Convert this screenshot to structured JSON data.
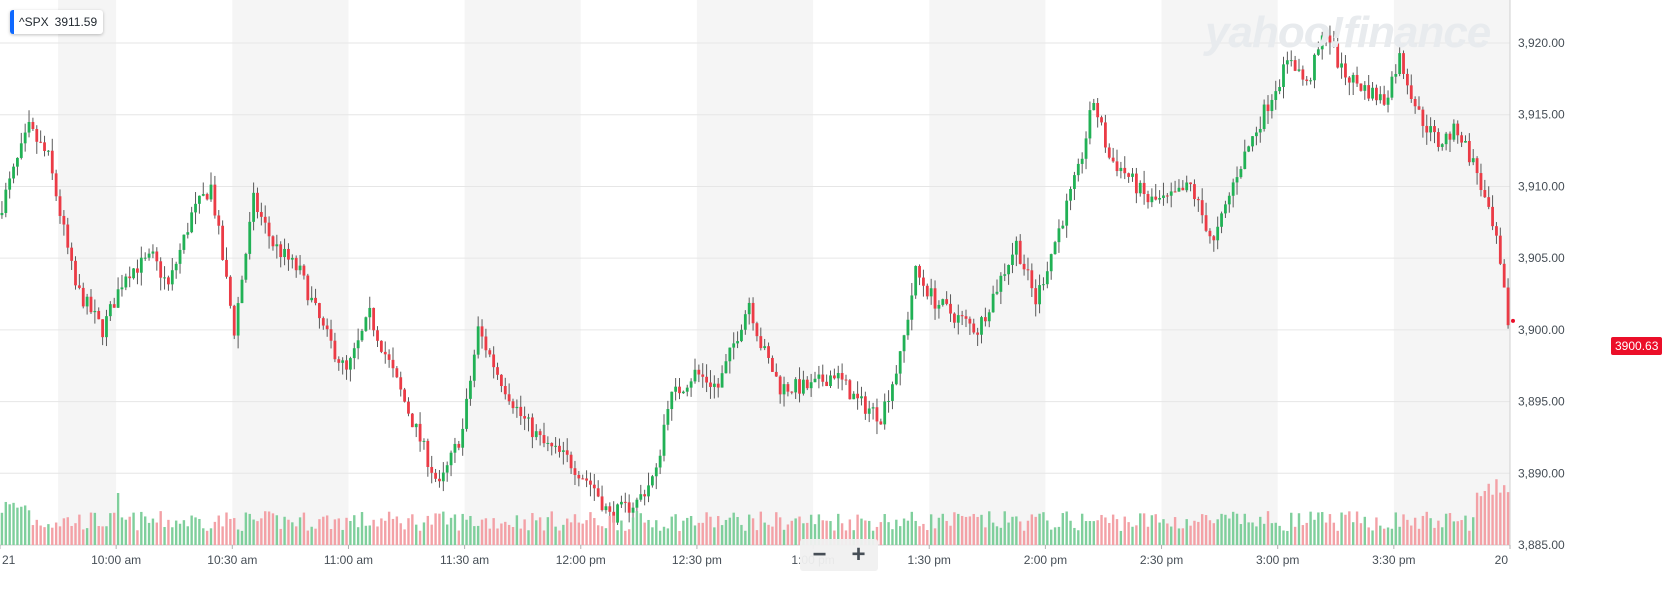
{
  "ticker": {
    "symbol": "^SPX",
    "value": "3911.59"
  },
  "watermark": "yahoo!finance",
  "zoom": {
    "minus": "−",
    "plus": "+"
  },
  "last_price": "3900.63",
  "colors": {
    "up": "#21b155",
    "down": "#eb3b46",
    "up_vol": "#7fcf9c",
    "down_vol": "#f3a1a6",
    "band": "#f5f5f5",
    "grid": "#e6e6e6",
    "accent": "#0f69ff"
  },
  "chart_data": {
    "type": "candlestick",
    "title": "",
    "xlabel": "",
    "ylabel": "",
    "ylim": [
      3885,
      3923
    ],
    "y_ticks": [
      "3,885.00",
      "3,890.00",
      "3,895.00",
      "3,900.00",
      "3,905.00",
      "3,910.00",
      "3,915.00",
      "3,920.00"
    ],
    "x_tick_labels": [
      "21",
      "10:00 am",
      "10:30 am",
      "11:00 am",
      "11:30 am",
      "12:00 pm",
      "12:30 pm",
      "1:00 pm",
      "1:30 pm",
      "2:00 pm",
      "2:30 pm",
      "3:00 pm",
      "3:30 pm",
      "20"
    ],
    "x_range_minutes": [
      570,
      960
    ],
    "grid": true,
    "shaded_bands_minutes": [
      [
        585,
        600
      ],
      [
        630,
        660
      ],
      [
        690,
        720
      ],
      [
        750,
        780
      ],
      [
        810,
        840
      ],
      [
        870,
        900
      ],
      [
        930,
        960
      ]
    ],
    "approx_close_path": [
      {
        "t": 570,
        "v": 3908
      },
      {
        "t": 578,
        "v": 3914
      },
      {
        "t": 583,
        "v": 3912
      },
      {
        "t": 590,
        "v": 3903
      },
      {
        "t": 597,
        "v": 3900
      },
      {
        "t": 603,
        "v": 3904
      },
      {
        "t": 610,
        "v": 3905
      },
      {
        "t": 614,
        "v": 3903
      },
      {
        "t": 620,
        "v": 3908
      },
      {
        "t": 625,
        "v": 3910
      },
      {
        "t": 631,
        "v": 3900
      },
      {
        "t": 636,
        "v": 3909
      },
      {
        "t": 641,
        "v": 3906
      },
      {
        "t": 648,
        "v": 3904
      },
      {
        "t": 654,
        "v": 3900
      },
      {
        "t": 660,
        "v": 3897
      },
      {
        "t": 666,
        "v": 3901
      },
      {
        "t": 672,
        "v": 3897
      },
      {
        "t": 678,
        "v": 3893
      },
      {
        "t": 684,
        "v": 3889
      },
      {
        "t": 690,
        "v": 3893
      },
      {
        "t": 694,
        "v": 3900
      },
      {
        "t": 699,
        "v": 3897
      },
      {
        "t": 705,
        "v": 3894
      },
      {
        "t": 711,
        "v": 3892
      },
      {
        "t": 717,
        "v": 3891
      },
      {
        "t": 724,
        "v": 3889
      },
      {
        "t": 728,
        "v": 3887
      },
      {
        "t": 735,
        "v": 3888
      },
      {
        "t": 740,
        "v": 3890
      },
      {
        "t": 743,
        "v": 3895
      },
      {
        "t": 750,
        "v": 3897
      },
      {
        "t": 756,
        "v": 3896
      },
      {
        "t": 760,
        "v": 3899
      },
      {
        "t": 764,
        "v": 3902
      },
      {
        "t": 767,
        "v": 3899
      },
      {
        "t": 772,
        "v": 3896
      },
      {
        "t": 780,
        "v": 3896
      },
      {
        "t": 786,
        "v": 3897
      },
      {
        "t": 792,
        "v": 3895
      },
      {
        "t": 798,
        "v": 3894
      },
      {
        "t": 803,
        "v": 3898
      },
      {
        "t": 807,
        "v": 3904
      },
      {
        "t": 812,
        "v": 3902
      },
      {
        "t": 817,
        "v": 3901
      },
      {
        "t": 823,
        "v": 3900
      },
      {
        "t": 828,
        "v": 3903
      },
      {
        "t": 833,
        "v": 3906
      },
      {
        "t": 838,
        "v": 3902
      },
      {
        "t": 844,
        "v": 3907
      },
      {
        "t": 849,
        "v": 3911
      },
      {
        "t": 853,
        "v": 3916
      },
      {
        "t": 857,
        "v": 3912
      },
      {
        "t": 861,
        "v": 3911
      },
      {
        "t": 867,
        "v": 3909
      },
      {
        "t": 872,
        "v": 3909
      },
      {
        "t": 878,
        "v": 3910
      },
      {
        "t": 884,
        "v": 3906
      },
      {
        "t": 890,
        "v": 3911
      },
      {
        "t": 895,
        "v": 3914
      },
      {
        "t": 900,
        "v": 3917
      },
      {
        "t": 904,
        "v": 3919
      },
      {
        "t": 908,
        "v": 3917
      },
      {
        "t": 913,
        "v": 3921
      },
      {
        "t": 917,
        "v": 3918
      },
      {
        "t": 922,
        "v": 3917
      },
      {
        "t": 928,
        "v": 3916
      },
      {
        "t": 932,
        "v": 3919
      },
      {
        "t": 937,
        "v": 3915
      },
      {
        "t": 942,
        "v": 3913
      },
      {
        "t": 947,
        "v": 3914
      },
      {
        "t": 952,
        "v": 3911
      },
      {
        "t": 957,
        "v": 3906
      },
      {
        "t": 960,
        "v": 3900.63
      }
    ]
  }
}
